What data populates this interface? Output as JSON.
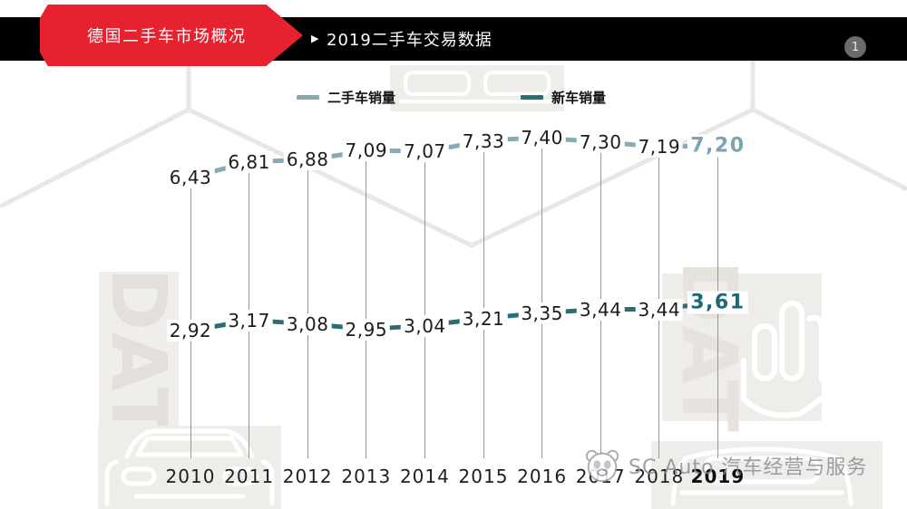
{
  "header": {
    "ribbon_title": "德国二手车市场概况",
    "bar_marker": "▶",
    "bar_title": "2019二手车交易数据",
    "page_badge": "1",
    "accent_red": "#e8212e",
    "bar_black": "#000000"
  },
  "watermarks": {
    "dat": "DAT",
    "brand": "SC Auto 汽车经营与服务"
  },
  "chart_data": {
    "type": "line",
    "x": [
      "2010",
      "2011",
      "2012",
      "2013",
      "2014",
      "2015",
      "2016",
      "2017",
      "2018",
      "2019"
    ],
    "series": [
      {
        "name": "二手车销量",
        "color": "#87abb4",
        "bold_color": "#7ba4ae",
        "values": [
          6.43,
          6.81,
          6.88,
          7.09,
          7.07,
          7.33,
          7.4,
          7.3,
          7.19,
          7.2
        ],
        "labels": [
          "6,43",
          "6,81",
          "6,88",
          "7,09",
          "7,07",
          "7,33",
          "7,40",
          "7,30",
          "7,19",
          "7,20"
        ]
      },
      {
        "name": "新车销量",
        "color": "#2b6d76",
        "bold_color": "#1e6876",
        "values": [
          2.92,
          3.17,
          3.08,
          2.95,
          3.04,
          3.21,
          3.35,
          3.44,
          3.44,
          3.61
        ],
        "labels": [
          "2,92",
          "3,17",
          "3,08",
          "2,95",
          "3,04",
          "3,21",
          "3,35",
          "3,44",
          "3,44",
          "3,61"
        ]
      }
    ],
    "decimal_separator": ",",
    "highlight_last_point": true,
    "legend_position": "top",
    "grid": "vertical-only",
    "gridline_color": "#979797"
  }
}
